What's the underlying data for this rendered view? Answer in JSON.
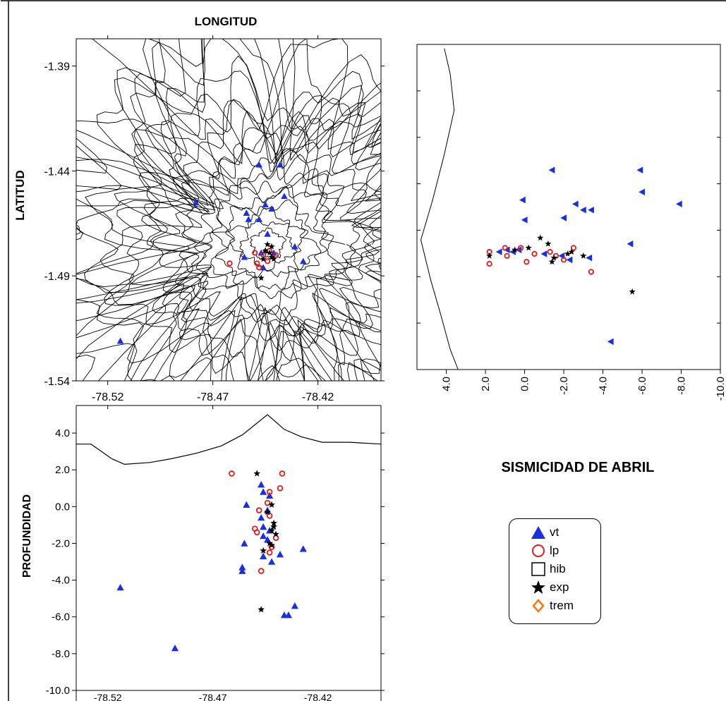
{
  "title": "SISMICIDAD DE ABRIL",
  "colors": {
    "vt": "#1a2fe0",
    "lp": "#e01a1a",
    "exp": "#000000",
    "trem": "#f07a10",
    "hib": "#000000"
  },
  "legend": [
    {
      "key": "vt",
      "label": "vt",
      "icon": "triangle-up"
    },
    {
      "key": "lp",
      "label": "lp",
      "icon": "circle-open"
    },
    {
      "key": "hib",
      "label": "hib",
      "icon": "square-open"
    },
    {
      "key": "exp",
      "label": "exp",
      "icon": "star"
    },
    {
      "key": "trem",
      "label": "trem",
      "icon": "diamond-open"
    }
  ],
  "chart_data": [
    {
      "id": "map",
      "type": "scatter",
      "title": "LONGITUD",
      "xlabel": "LONGITUD",
      "ylabel": "LATITUD",
      "xlim": [
        -78.535,
        -78.39
      ],
      "ylim": [
        -1.54,
        -1.377
      ],
      "xticks": [
        "-78.52",
        "-78.47",
        "-78.42"
      ],
      "xtick_values": [
        -78.52,
        -78.47,
        -78.42
      ],
      "yticks": [
        "-1.39",
        "-1.44",
        "-1.49",
        "-1.54"
      ],
      "ytick_values": [
        -1.39,
        -1.44,
        -1.49,
        -1.54
      ],
      "background": "topographic-contours",
      "series": [
        {
          "name": "vt",
          "marker": "triangle-up",
          "points": [
            [
              -78.448,
              -1.437
            ],
            [
              -78.438,
              -1.437
            ],
            [
              -78.478,
              -1.455
            ],
            [
              -78.454,
              -1.46
            ],
            [
              -78.453,
              -1.463
            ],
            [
              -78.445,
              -1.456
            ],
            [
              -78.442,
              -1.458
            ],
            [
              -78.436,
              -1.452
            ],
            [
              -78.448,
              -1.463
            ],
            [
              -78.444,
              -1.47
            ],
            [
              -78.431,
              -1.476
            ],
            [
              -78.445,
              -1.478
            ],
            [
              -78.441,
              -1.479
            ],
            [
              -78.447,
              -1.479
            ],
            [
              -78.455,
              -1.481
            ],
            [
              -78.427,
              -1.483
            ],
            [
              -78.446,
              -1.486
            ],
            [
              -78.514,
              -1.521
            ]
          ]
        },
        {
          "name": "lp",
          "marker": "circle-open",
          "points": [
            [
              -78.45,
              -1.479
            ],
            [
              -78.443,
              -1.478
            ],
            [
              -78.446,
              -1.48
            ],
            [
              -78.44,
              -1.48
            ],
            [
              -78.449,
              -1.484
            ],
            [
              -78.444,
              -1.483
            ],
            [
              -78.462,
              -1.484
            ],
            [
              -78.448,
              -1.486
            ]
          ]
        },
        {
          "name": "exp",
          "marker": "star",
          "points": [
            [
              -78.444,
              -1.475
            ],
            [
              -78.442,
              -1.476
            ],
            [
              -78.445,
              -1.478
            ],
            [
              -78.443,
              -1.479
            ],
            [
              -78.442,
              -1.481
            ],
            [
              -78.441,
              -1.482
            ],
            [
              -78.446,
              -1.482
            ],
            [
              -78.447,
              -1.491
            ]
          ]
        }
      ]
    },
    {
      "id": "ns-section",
      "type": "scatter",
      "xlabel": "",
      "ylabel": "",
      "xlim": [
        5.5,
        -10.0
      ],
      "xticks": [
        "4.0",
        "2.0",
        "0.0",
        "-2.0",
        "-4.0",
        "-6.0",
        "-8.0",
        "-10.0"
      ],
      "xtick_values": [
        4,
        2,
        0,
        -2,
        -4,
        -6,
        -8,
        -10
      ],
      "ylim": [
        -1.54,
        -1.377
      ],
      "right_ticks_rotated": true,
      "series": [
        {
          "name": "vt",
          "marker": "triangle-left",
          "points": [
            [
              -1.4,
              -1.44
            ],
            [
              -5.9,
              -1.44
            ],
            [
              -6.0,
              -1.451
            ],
            [
              0.1,
              -1.455
            ],
            [
              -2.6,
              -1.457
            ],
            [
              -7.9,
              -1.457
            ],
            [
              -3.0,
              -1.46
            ],
            [
              -3.4,
              -1.46
            ],
            [
              0.0,
              -1.465
            ],
            [
              -2.0,
              -1.464
            ],
            [
              -5.4,
              -1.477
            ],
            [
              1.3,
              -1.481
            ],
            [
              0.9,
              -1.48
            ],
            [
              0.6,
              -1.481
            ],
            [
              0.3,
              -1.48
            ],
            [
              -1.0,
              -1.482
            ],
            [
              -1.9,
              -1.483
            ],
            [
              -2.3,
              -1.485
            ],
            [
              -3.3,
              -1.484
            ],
            [
              -4.4,
              -1.526
            ]
          ]
        },
        {
          "name": "lp",
          "marker": "circle-open",
          "points": [
            [
              1.8,
              -1.481
            ],
            [
              1.0,
              -1.479
            ],
            [
              0.2,
              -1.479
            ],
            [
              -0.5,
              -1.482
            ],
            [
              -1.3,
              -1.481
            ],
            [
              -1.6,
              -1.483
            ],
            [
              -2.0,
              -1.485
            ],
            [
              -2.5,
              -1.479
            ],
            [
              0.9,
              -1.483
            ],
            [
              -0.1,
              -1.486
            ],
            [
              1.8,
              -1.487
            ],
            [
              -3.4,
              -1.491
            ]
          ]
        },
        {
          "name": "exp",
          "marker": "star",
          "points": [
            [
              -0.8,
              -1.474
            ],
            [
              1.8,
              -1.483
            ],
            [
              0.5,
              -1.48
            ],
            [
              -0.2,
              -1.479
            ],
            [
              -1.2,
              -1.477
            ],
            [
              -1.5,
              -1.484
            ],
            [
              -2.2,
              -1.482
            ],
            [
              -2.4,
              -1.481
            ],
            [
              -3.0,
              -1.483
            ],
            [
              -1.4,
              -1.486
            ],
            [
              -5.5,
              -1.501
            ]
          ]
        }
      ]
    },
    {
      "id": "depth-section",
      "type": "scatter",
      "xlabel": "",
      "ylabel": "PROFUNDIDAD",
      "xlim": [
        -78.535,
        -78.39
      ],
      "ylim": [
        -10.0,
        5.5
      ],
      "xticks": [
        "-78.52",
        "-78.47",
        "-78.42"
      ],
      "xtick_values": [
        -78.52,
        -78.47,
        -78.42
      ],
      "yticks": [
        "4.0",
        "2.0",
        "0.0",
        "-2.0",
        "-4.0",
        "-6.0",
        "-8.0",
        "-10.0"
      ],
      "ytick_values": [
        4,
        2,
        0,
        -2,
        -4,
        -6,
        -8,
        -10
      ],
      "series": [
        {
          "name": "vt",
          "marker": "triangle-up",
          "points": [
            [
              -78.447,
              1.2
            ],
            [
              -78.446,
              0.8
            ],
            [
              -78.443,
              0.6
            ],
            [
              -78.454,
              0.1
            ],
            [
              -78.444,
              -0.2
            ],
            [
              -78.447,
              -0.6
            ],
            [
              -78.446,
              -1.1
            ],
            [
              -78.443,
              -1.3
            ],
            [
              -78.446,
              -1.6
            ],
            [
              -78.444,
              -1.8
            ],
            [
              -78.455,
              -2.0
            ],
            [
              -78.427,
              -2.3
            ],
            [
              -78.438,
              -2.6
            ],
            [
              -78.446,
              -2.7
            ],
            [
              -78.442,
              -3.0
            ],
            [
              -78.456,
              -3.3
            ],
            [
              -78.456,
              -3.5
            ],
            [
              -78.514,
              -4.4
            ],
            [
              -78.431,
              -5.4
            ],
            [
              -78.436,
              -5.9
            ],
            [
              -78.434,
              -5.9
            ],
            [
              -78.488,
              -7.7
            ]
          ]
        },
        {
          "name": "lp",
          "marker": "circle-open",
          "points": [
            [
              -78.461,
              1.8
            ],
            [
              -78.437,
              1.8
            ],
            [
              -78.443,
              0.8
            ],
            [
              -78.438,
              1.0
            ],
            [
              -78.444,
              0.2
            ],
            [
              -78.448,
              -0.2
            ],
            [
              -78.443,
              -0.5
            ],
            [
              -78.45,
              -1.2
            ],
            [
              -78.449,
              -1.4
            ],
            [
              -78.44,
              -1.7
            ],
            [
              -78.442,
              -2.2
            ],
            [
              -78.443,
              -2.5
            ],
            [
              -78.447,
              -3.5
            ]
          ]
        },
        {
          "name": "exp",
          "marker": "star",
          "points": [
            [
              -78.449,
              1.8
            ],
            [
              -78.442,
              0.1
            ],
            [
              -78.444,
              -0.3
            ],
            [
              -78.441,
              -0.9
            ],
            [
              -78.441,
              -1.1
            ],
            [
              -78.442,
              -1.3
            ],
            [
              -78.44,
              -1.5
            ],
            [
              -78.443,
              -2.0
            ],
            [
              -78.442,
              -2.1
            ],
            [
              -78.446,
              -2.4
            ],
            [
              -78.447,
              -5.6
            ]
          ]
        }
      ]
    }
  ]
}
